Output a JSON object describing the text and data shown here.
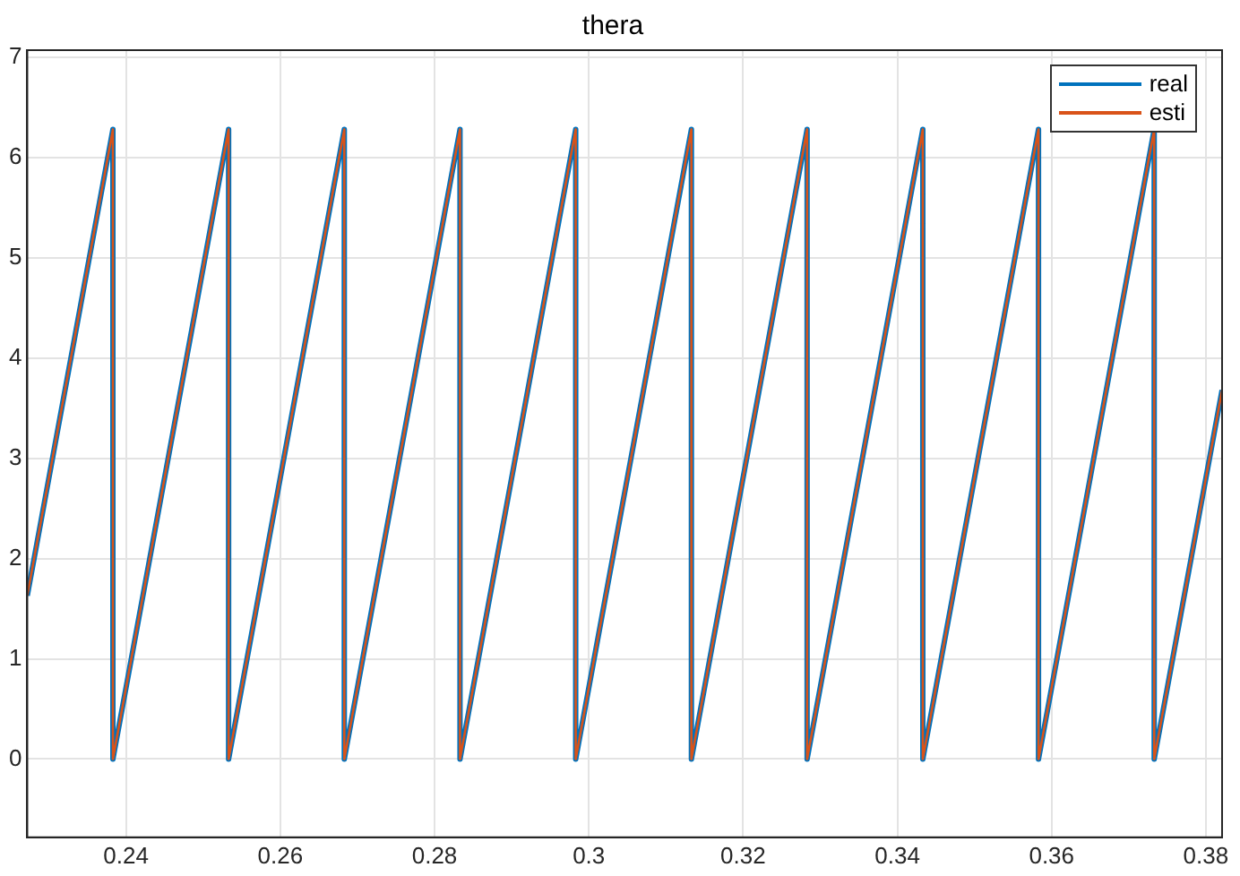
{
  "chart_data": {
    "type": "line",
    "title": "thera",
    "x": [
      0.2272,
      0.2383,
      0.2383,
      0.2533,
      0.2533,
      0.2683,
      0.2683,
      0.2833,
      0.2833,
      0.2983,
      0.2983,
      0.3133,
      0.3133,
      0.3283,
      0.3283,
      0.3433,
      0.3433,
      0.3583,
      0.3583,
      0.3733,
      0.3733,
      0.3821
    ],
    "series": [
      {
        "name": "real",
        "color": "#0072bd",
        "values": [
          1.63,
          6.28,
          0,
          6.28,
          0,
          6.28,
          0,
          6.28,
          0,
          6.28,
          0,
          6.28,
          0,
          6.28,
          0,
          6.28,
          0,
          6.28,
          0,
          6.28,
          0,
          3.68
        ]
      },
      {
        "name": "esti",
        "color": "#d95319",
        "values": [
          1.63,
          6.28,
          0,
          6.28,
          0,
          6.28,
          0,
          6.28,
          0,
          6.28,
          0,
          6.28,
          0,
          6.28,
          0,
          6.28,
          0,
          6.28,
          0,
          6.28,
          0,
          3.68
        ]
      }
    ],
    "xlim": [
      0.2272,
      0.3821
    ],
    "xticks": [
      0.24,
      0.26,
      0.28,
      0.3,
      0.32,
      0.34,
      0.36,
      0.38
    ],
    "ylim": [
      -0.78,
      7.07
    ],
    "yticks": [
      0,
      1,
      2,
      3,
      4,
      5,
      6,
      7
    ],
    "grid": true,
    "legend": "top right",
    "marker": "none",
    "line_style": "solid"
  }
}
